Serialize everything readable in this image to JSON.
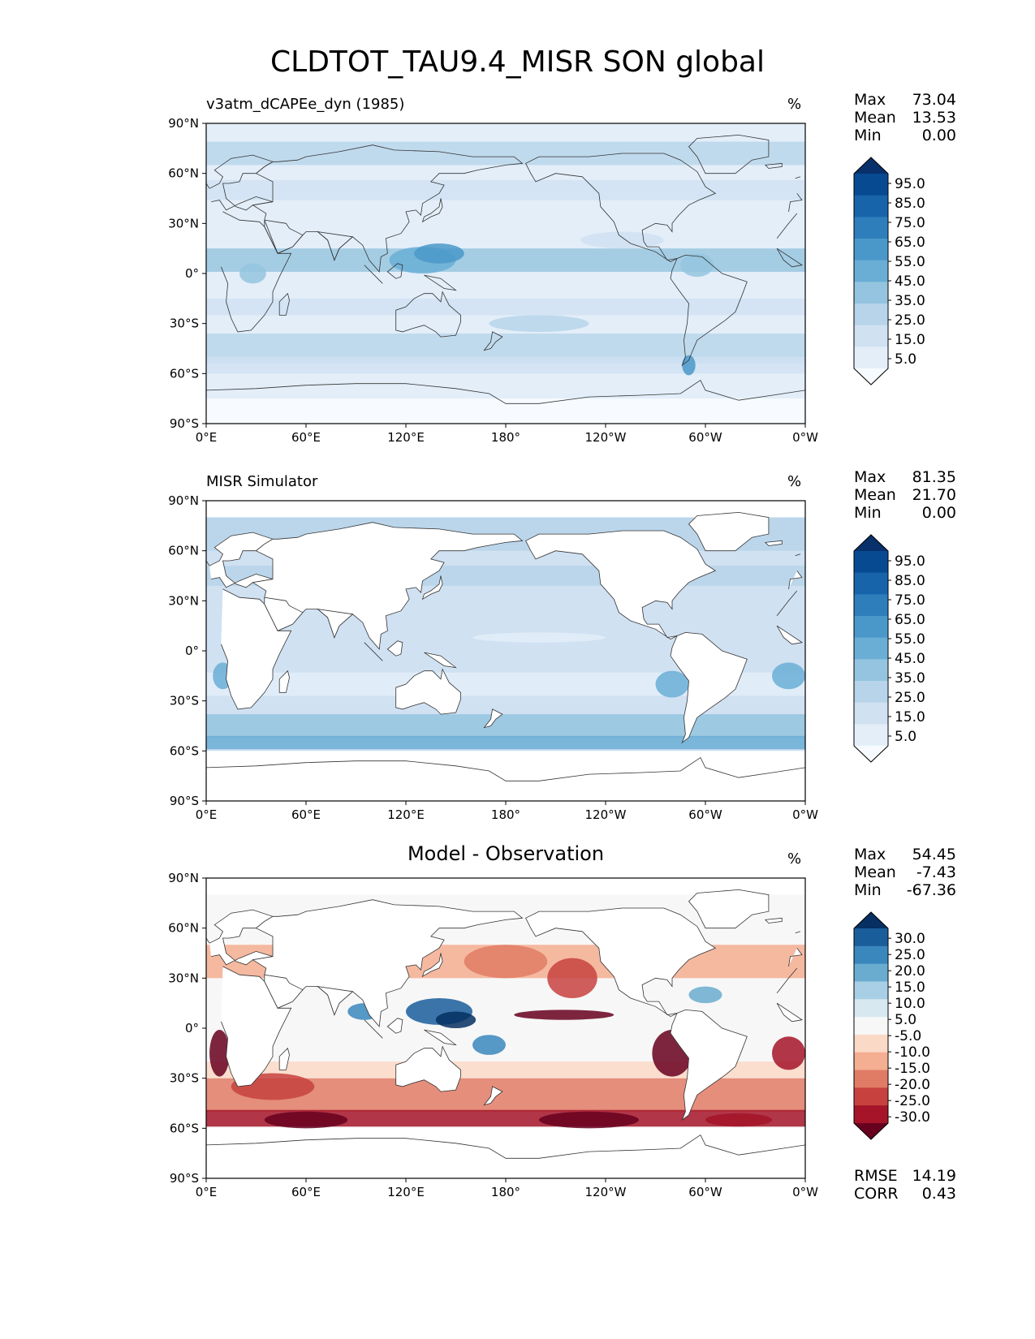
{
  "title": "CLDTOT_TAU9.4_MISR SON global",
  "lat_ticks": [
    "90°N",
    "60°N",
    "30°N",
    "0°",
    "30°S",
    "60°S",
    "90°S"
  ],
  "lon_ticks": [
    "0°E",
    "60°E",
    "120°E",
    "180°",
    "120°W",
    "60°W",
    "0°W"
  ],
  "panels": [
    {
      "title": "v3atm_dCAPEe_dyn (1985)",
      "title_style": "left",
      "unit": "%",
      "stats": [
        {
          "label": "Max",
          "value": "73.04"
        },
        {
          "label": "Mean",
          "value": "13.53"
        },
        {
          "label": "Min",
          "value": "0.00"
        }
      ],
      "colorbar": {
        "labels": [
          "95.0",
          "85.0",
          "75.0",
          "65.0",
          "55.0",
          "45.0",
          "35.0",
          "25.0",
          "15.0",
          "5.0"
        ],
        "colors": [
          "#f7fbff",
          "#e3eef9",
          "#d0e1f2",
          "#b7d4ea",
          "#94c4df",
          "#6aaed6",
          "#4a98c9",
          "#2e7ebc",
          "#1764ab",
          "#084a91",
          "#08306b"
        ]
      }
    },
    {
      "title": "MISR Simulator",
      "title_style": "left",
      "unit": "%",
      "stats": [
        {
          "label": "Max",
          "value": "81.35"
        },
        {
          "label": "Mean",
          "value": "21.70"
        },
        {
          "label": "Min",
          "value": "0.00"
        }
      ],
      "colorbar": {
        "labels": [
          "95.0",
          "85.0",
          "75.0",
          "65.0",
          "55.0",
          "45.0",
          "35.0",
          "25.0",
          "15.0",
          "5.0"
        ],
        "colors": [
          "#f7fbff",
          "#e3eef9",
          "#d0e1f2",
          "#b7d4ea",
          "#94c4df",
          "#6aaed6",
          "#4a98c9",
          "#2e7ebc",
          "#1764ab",
          "#084a91",
          "#08306b"
        ]
      }
    },
    {
      "title": "Model - Observation",
      "title_style": "center",
      "unit": "%",
      "stats": [
        {
          "label": "Max",
          "value": "54.45"
        },
        {
          "label": "Mean",
          "value": "-7.43"
        },
        {
          "label": "Min",
          "value": "-67.36"
        }
      ],
      "colorbar": {
        "labels": [
          "30.0",
          "25.0",
          "20.0",
          "15.0",
          "10.0",
          "5.0",
          "-5.0",
          "-10.0",
          "-15.0",
          "-20.0",
          "-25.0",
          "-30.0"
        ],
        "colors": [
          "#67001f",
          "#a51429",
          "#c7423f",
          "#e07b65",
          "#f4ae91",
          "#fbd9c7",
          "#f7f7f7",
          "#d7e8f1",
          "#a8cfe5",
          "#6aaccf",
          "#3a87bd",
          "#1a5d9b",
          "#053061"
        ]
      },
      "footer": [
        {
          "label": "RMSE",
          "value": "14.19"
        },
        {
          "label": "CORR",
          "value": "0.43"
        }
      ]
    }
  ]
}
